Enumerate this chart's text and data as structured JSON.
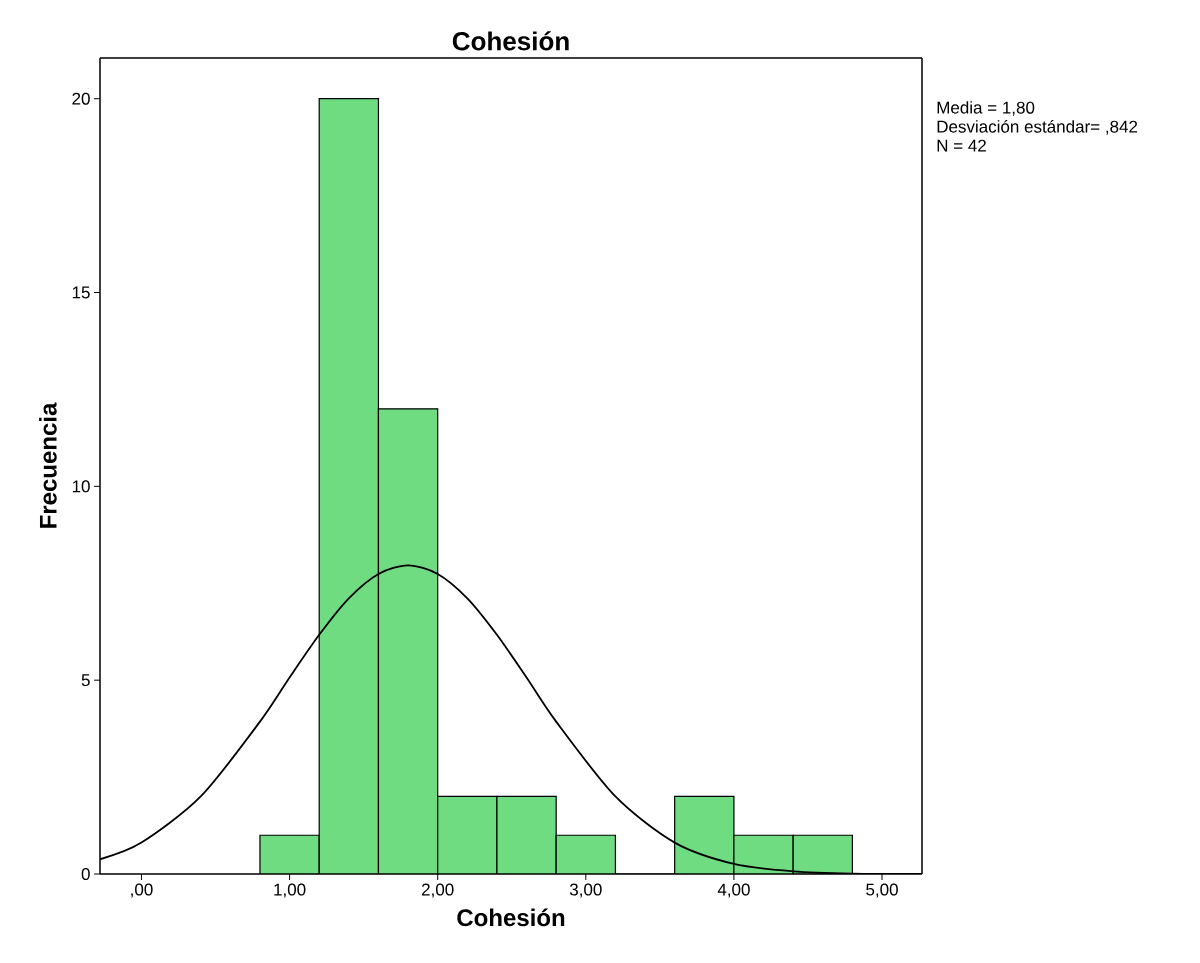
{
  "chart_data": {
    "type": "histogram",
    "title": "Cohesión",
    "xlabel": "Cohesión",
    "ylabel": "Frecuencia",
    "annotations": [
      "Media = 1,80",
      "Desviación estándar= ,842",
      "N = 42"
    ],
    "series": [
      {
        "bins": [
          0.8,
          1.2,
          1.6,
          2.0,
          2.4,
          2.8,
          3.2,
          3.6,
          4.0,
          4.4,
          4.8
        ],
        "values": [
          1,
          20,
          12,
          2,
          2,
          1,
          0,
          2,
          1,
          1
        ],
        "color": "#70dc82"
      },
      {
        "type": "line",
        "x": [
          -0.28,
          0.0,
          0.4,
          0.8,
          1.0,
          1.2,
          1.4,
          1.6,
          1.8,
          2.0,
          2.2,
          2.4,
          2.6,
          2.8,
          3.2,
          3.6,
          4.0,
          4.4,
          4.8,
          5.27
        ],
        "values": [
          0.38,
          0.81,
          2.0,
          3.93,
          5.07,
          6.17,
          7.11,
          7.74,
          7.96,
          7.74,
          7.11,
          6.17,
          5.07,
          3.93,
          2.0,
          0.81,
          0.26,
          0.07,
          0.01,
          0.0
        ],
        "color": "#000000"
      }
    ],
    "xlim": [
      -0.28,
      5.27
    ],
    "ylim": [
      0,
      21.05
    ],
    "xticks": [
      {
        "value": 0,
        "label": ",00"
      },
      {
        "value": 1,
        "label": "1,00"
      },
      {
        "value": 2,
        "label": "2,00"
      },
      {
        "value": 3,
        "label": "3,00"
      },
      {
        "value": 4,
        "label": "4,00"
      },
      {
        "value": 5,
        "label": "5,00"
      }
    ],
    "yticks": [
      0,
      5,
      10,
      15,
      20
    ],
    "grid": false,
    "marker": "none",
    "line_style": "solid"
  }
}
